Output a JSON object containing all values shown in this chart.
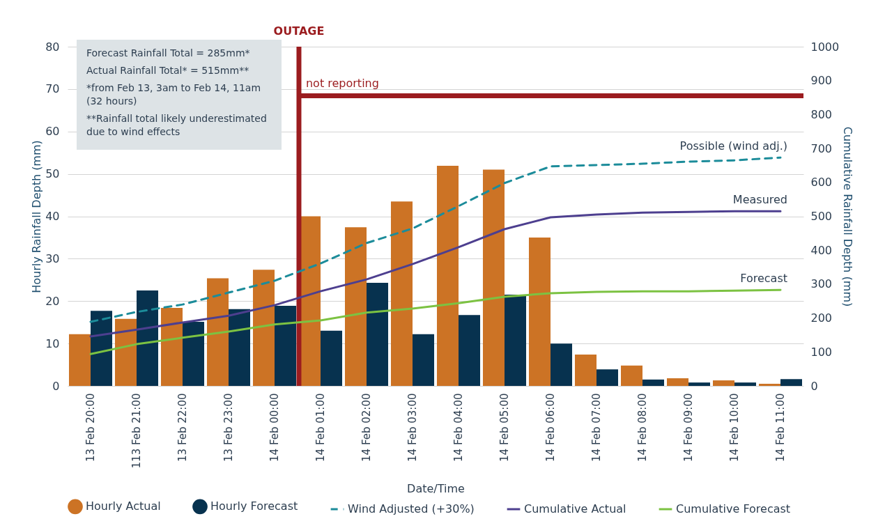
{
  "chart_data": {
    "type": "bar",
    "xlabel": "Date/Time",
    "ylabel": "Hourly Rainfall Depth (mm)",
    "y2label": "Cumulative Rainfall Depth (mm)",
    "categories": [
      "13 Feb 20:00",
      "113 Feb 21:00",
      "13 Feb 22:00",
      "13 Feb 23:00",
      "14 Feb 00:00",
      "14 Feb 01:00",
      "14 Feb 02:00",
      "14 Feb 03:00",
      "14 Feb 04:00",
      "14 Feb 05:00",
      "14 Feb 06:00",
      "14 Feb 07:00",
      "14 Feb 08:00",
      "14 Feb 09:00",
      "14 Feb 10:00",
      "14 Feb 11:00"
    ],
    "series": [
      {
        "name": "Hourly Actual",
        "color": "#cc7325",
        "values": [
          12.2,
          15.8,
          18.4,
          25.4,
          27.4,
          40,
          37.4,
          43.5,
          51.9,
          51,
          35,
          7.4,
          4.8,
          1.8,
          1.3,
          0.5
        ]
      },
      {
        "name": "Hourly Forecast",
        "color": "#07324f",
        "values": [
          17.7,
          22.5,
          15.1,
          18.1,
          18.9,
          13,
          24.3,
          12.2,
          16.7,
          21.5,
          10,
          3.9,
          1.5,
          0.8,
          0.8,
          1.6
        ]
      },
      {
        "name": "Wind Adjusted (+30%)",
        "type": "line",
        "axis": "y2",
        "line_style": "dashed",
        "color": "#1c8c9a",
        "values": [
          189,
          218,
          240,
          275,
          310,
          361,
          421,
          464,
          530,
          598,
          647,
          651,
          655,
          661,
          665,
          673
        ]
      },
      {
        "name": "Cumulative Actual",
        "type": "line",
        "axis": "y2",
        "line_style": "solid",
        "color": "#4d3f8f",
        "values": [
          146,
          166,
          187,
          207,
          238,
          279,
          314,
          359,
          409,
          462,
          497,
          505,
          511,
          513,
          515,
          515
        ]
      },
      {
        "name": "Cumulative Forecast",
        "type": "line",
        "axis": "y2",
        "line_style": "solid",
        "color": "#7cc242",
        "values": [
          94,
          123,
          142,
          160,
          181,
          193,
          216,
          228,
          244,
          263,
          273,
          277,
          279,
          279,
          281,
          283
        ]
      }
    ],
    "ylim": [
      0,
      80
    ],
    "yticks": [
      0,
      10,
      20,
      30,
      40,
      50,
      60,
      70,
      80
    ],
    "y2lim": [
      0,
      1000
    ],
    "y2ticks": [
      0,
      100,
      200,
      300,
      400,
      500,
      600,
      700,
      800,
      900,
      1000
    ],
    "grid": "y",
    "legend": "bottom",
    "marker": "none",
    "ref_lines": [
      {
        "axis": "x",
        "value": "14 Feb 01:00",
        "label": "OUTAGE",
        "color": "#9b1c1f"
      },
      {
        "axis": "y2",
        "value": 855,
        "label": "not reporting",
        "color": "#9b1c1f"
      }
    ],
    "annotations": [
      "Forecast Rainfall Total = 285mm*",
      "Actual Rainfall Total* = 515mm**",
      "*from Feb 13, 3am to Feb 14, 11am (32 hours)",
      "**Rainfall total likely underestimated due to wind effects",
      "Possible (wind adj.)",
      "Measured",
      "Forecast"
    ]
  }
}
